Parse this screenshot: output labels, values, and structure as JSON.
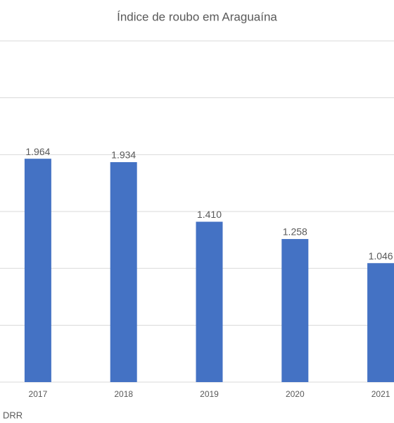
{
  "chart_data": {
    "type": "bar",
    "title": "Índice de roubo em Araguaína",
    "categories": [
      "2017",
      "2018",
      "2019",
      "2020",
      "2021"
    ],
    "values": [
      1964,
      1934,
      1410,
      1258,
      1046
    ],
    "value_labels": [
      "1.964",
      "1.934",
      "1.410",
      "1.258",
      "1.046"
    ],
    "color": "#4472c4",
    "ylim": [
      0,
      3000
    ],
    "yticks": [
      0,
      500,
      1000,
      1500,
      2000,
      2500,
      3000
    ],
    "grid": true,
    "source": "DRR"
  }
}
